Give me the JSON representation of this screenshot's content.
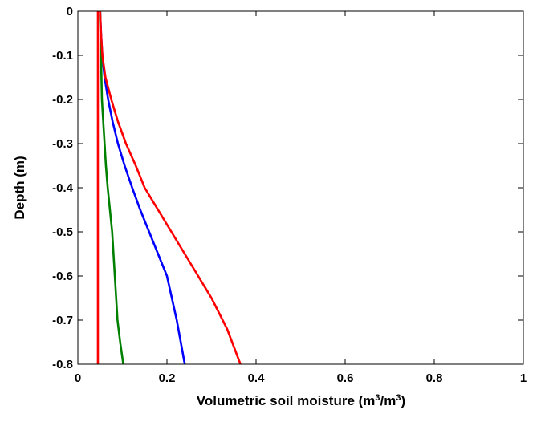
{
  "chart_data": {
    "type": "line",
    "title": "",
    "xlabel": "Volumetric soil moisture (m",
    "xlabel_sup1": "3",
    "xlabel_mid": "/m",
    "xlabel_sup2": "3",
    "xlabel_end": ")",
    "ylabel": "Depth (m)",
    "xlim": [
      0,
      1
    ],
    "ylim": [
      -0.8,
      0
    ],
    "xticks": [
      0,
      0.2,
      0.4,
      0.6,
      0.8,
      1
    ],
    "xtick_labels": [
      "0",
      "0.2",
      "0.4",
      "0.6",
      "0.8",
      "1"
    ],
    "yticks": [
      0,
      -0.1,
      -0.2,
      -0.3,
      -0.4,
      -0.5,
      -0.6,
      -0.7,
      -0.8
    ],
    "ytick_labels": [
      "0",
      "-0.1",
      "-0.2",
      "-0.3",
      "-0.4",
      "-0.5",
      "-0.6",
      "-0.7",
      "-0.8"
    ],
    "grid": false,
    "legend": false,
    "series": [
      {
        "color": "#0000ff",
        "x": [
          0.05,
          0.052,
          0.055,
          0.06,
          0.068,
          0.078,
          0.09,
          0.105,
          0.122,
          0.14,
          0.16,
          0.18,
          0.2,
          0.222,
          0.24
        ],
        "y": [
          0,
          -0.05,
          -0.1,
          -0.15,
          -0.2,
          -0.25,
          -0.3,
          -0.35,
          -0.4,
          -0.45,
          -0.5,
          -0.55,
          -0.6,
          -0.7,
          -0.8
        ]
      },
      {
        "color": "#008000",
        "x": [
          0.05,
          0.052,
          0.054,
          0.057,
          0.06,
          0.063,
          0.067,
          0.072,
          0.077,
          0.083,
          0.089,
          0.095,
          0.102
        ],
        "y": [
          0,
          -0.1,
          -0.2,
          -0.25,
          -0.3,
          -0.35,
          -0.4,
          -0.45,
          -0.5,
          -0.6,
          -0.7,
          -0.75,
          -0.8
        ]
      },
      {
        "color": "#ff0000",
        "x": [
          0.05,
          0.052,
          0.055,
          0.062,
          0.075,
          0.09,
          0.108,
          0.13,
          0.15,
          0.18,
          0.21,
          0.24,
          0.27,
          0.3,
          0.335,
          0.365
        ],
        "y": [
          0,
          -0.05,
          -0.1,
          -0.15,
          -0.2,
          -0.25,
          -0.3,
          -0.35,
          -0.4,
          -0.45,
          -0.5,
          -0.55,
          -0.6,
          -0.65,
          -0.72,
          -0.8
        ]
      },
      {
        "color": "#ff0000",
        "x": [
          0.045,
          0.045
        ],
        "y": [
          0,
          -0.8
        ]
      }
    ]
  }
}
